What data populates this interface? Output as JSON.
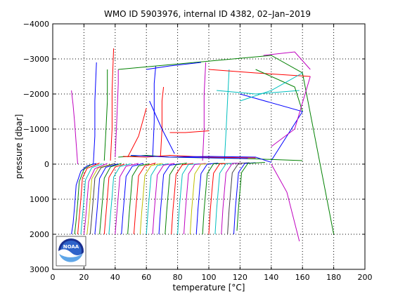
{
  "chart_data": {
    "type": "line",
    "title": "WMO ID 5903976, internal ID 4382, 02–Jan–2019",
    "xlabel": "temperature [°C]",
    "ylabel": "pressure [dbar]",
    "xlim": [
      0,
      200
    ],
    "ylim": [
      -4000,
      3000
    ],
    "y_reversed": true,
    "grid": true,
    "grid_style": "dotted",
    "x_ticks": [
      "0",
      "20",
      "40",
      "60",
      "80",
      "100",
      "120",
      "140",
      "160",
      "180",
      "200"
    ],
    "y_ticks": [
      "−4000",
      "−3000",
      "−2000",
      "−1000",
      "0",
      "1000",
      "2000",
      "3000"
    ],
    "logo": "NOAA",
    "profiles": [
      {
        "color": "#0000ff",
        "x": [
          12,
          13,
          14,
          15,
          18,
          22,
          28
        ],
        "y": [
          2000,
          1700,
          1200,
          600,
          200,
          50,
          -20
        ]
      },
      {
        "color": "#008000",
        "x": [
          14,
          15,
          16,
          17,
          20,
          25
        ],
        "y": [
          2000,
          1600,
          1100,
          500,
          150,
          0
        ]
      },
      {
        "color": "#ff0000",
        "x": [
          16,
          17,
          18,
          19,
          22,
          30
        ],
        "y": [
          2000,
          1500,
          1000,
          400,
          120,
          -30
        ]
      },
      {
        "color": "#00bfbf",
        "x": [
          18,
          19,
          20,
          21,
          25,
          32
        ],
        "y": [
          2000,
          1500,
          1000,
          450,
          100,
          -10
        ]
      },
      {
        "color": "#bf00bf",
        "x": [
          20,
          21,
          22,
          23,
          27,
          35
        ],
        "y": [
          2000,
          1600,
          1050,
          500,
          130,
          -20
        ]
      },
      {
        "color": "#bfbf00",
        "x": [
          22,
          23,
          24,
          25,
          29,
          38
        ],
        "y": [
          2000,
          1550,
          1000,
          420,
          110,
          0
        ]
      },
      {
        "color": "#404040",
        "x": [
          24,
          25,
          26,
          27,
          31,
          40
        ],
        "y": [
          2000,
          1500,
          980,
          400,
          100,
          -20
        ]
      },
      {
        "color": "#0000ff",
        "x": [
          27,
          28,
          29,
          30,
          34,
          42
        ],
        "y": [
          2000,
          1520,
          990,
          410,
          90,
          -10
        ]
      },
      {
        "color": "#008000",
        "x": [
          30,
          31,
          32,
          33,
          37,
          44
        ],
        "y": [
          2000,
          1500,
          960,
          400,
          80,
          -20
        ]
      },
      {
        "color": "#ff0000",
        "x": [
          33,
          34,
          35,
          36,
          40,
          46
        ],
        "y": [
          2000,
          1480,
          950,
          380,
          80,
          0
        ]
      },
      {
        "color": "#00bfbf",
        "x": [
          36,
          37,
          38,
          39,
          43,
          50
        ],
        "y": [
          2000,
          1450,
          930,
          370,
          70,
          -10
        ]
      },
      {
        "color": "#bf00bf",
        "x": [
          40,
          41,
          42,
          43,
          47,
          55
        ],
        "y": [
          2000,
          1440,
          920,
          360,
          60,
          -20
        ]
      },
      {
        "color": "#0000ff",
        "x": [
          44,
          45,
          46,
          47,
          51,
          58
        ],
        "y": [
          2000,
          1420,
          900,
          350,
          60,
          -20
        ]
      },
      {
        "color": "#008000",
        "x": [
          48,
          49,
          50,
          51,
          55,
          62
        ],
        "y": [
          2000,
          1400,
          880,
          340,
          50,
          -10
        ]
      },
      {
        "color": "#ff0000",
        "x": [
          52,
          53,
          54,
          55,
          59,
          66
        ],
        "y": [
          2000,
          1390,
          870,
          330,
          50,
          -30
        ]
      },
      {
        "color": "#bfbf00",
        "x": [
          56,
          57,
          58,
          59,
          63,
          70
        ],
        "y": [
          2000,
          1380,
          860,
          320,
          40,
          -20
        ]
      },
      {
        "color": "#00bfbf",
        "x": [
          60,
          61,
          62,
          63,
          67,
          74
        ],
        "y": [
          2000,
          1370,
          850,
          320,
          40,
          -10
        ]
      },
      {
        "color": "#bf00bf",
        "x": [
          64,
          65,
          66,
          67,
          71,
          78
        ],
        "y": [
          2000,
          1360,
          840,
          310,
          30,
          -20
        ]
      },
      {
        "color": "#0000ff",
        "x": [
          68,
          69,
          70,
          71,
          75,
          82
        ],
        "y": [
          2000,
          1350,
          830,
          300,
          30,
          -10
        ]
      },
      {
        "color": "#008000",
        "x": [
          72,
          73,
          74,
          75,
          79,
          86
        ],
        "y": [
          2000,
          1340,
          820,
          300,
          20,
          -30
        ]
      },
      {
        "color": "#ff0000",
        "x": [
          76,
          77,
          78,
          79,
          83,
          90
        ],
        "y": [
          2000,
          1330,
          810,
          290,
          20,
          -20
        ]
      },
      {
        "color": "#00bfbf",
        "x": [
          80,
          81,
          82,
          83,
          87,
          94
        ],
        "y": [
          2000,
          1320,
          800,
          290,
          10,
          -10
        ]
      },
      {
        "color": "#bf00bf",
        "x": [
          84,
          85,
          86,
          87,
          91,
          98
        ],
        "y": [
          2000,
          1320,
          800,
          280,
          10,
          -20
        ]
      },
      {
        "color": "#bfbf00",
        "x": [
          88,
          89,
          90,
          91,
          95,
          102
        ],
        "y": [
          2000,
          1310,
          790,
          280,
          0,
          -10
        ]
      },
      {
        "color": "#0000ff",
        "x": [
          92,
          93,
          94,
          95,
          99,
          106
        ],
        "y": [
          2000,
          1300,
          780,
          270,
          0,
          -30
        ]
      },
      {
        "color": "#008000",
        "x": [
          96,
          97,
          98,
          99,
          103,
          110
        ],
        "y": [
          2000,
          1300,
          780,
          270,
          -10,
          -20
        ]
      },
      {
        "color": "#ff0000",
        "x": [
          100,
          101,
          102,
          103,
          107,
          114
        ],
        "y": [
          2000,
          1290,
          770,
          260,
          -10,
          -20
        ]
      },
      {
        "color": "#00bfbf",
        "x": [
          104,
          105,
          106,
          107,
          111,
          118
        ],
        "y": [
          2000,
          1290,
          770,
          260,
          -10,
          -30
        ]
      },
      {
        "color": "#bf00bf",
        "x": [
          108,
          109,
          110,
          111,
          115,
          122
        ],
        "y": [
          2000,
          1280,
          760,
          250,
          -20,
          -30
        ]
      },
      {
        "color": "#404040",
        "x": [
          112,
          113,
          114,
          115,
          119,
          126
        ],
        "y": [
          2000,
          1280,
          760,
          250,
          -20,
          -40
        ]
      },
      {
        "color": "#0000ff",
        "x": [
          116,
          117,
          118,
          119,
          123,
          130
        ],
        "y": [
          2000,
          1270,
          750,
          240,
          -20,
          -40
        ]
      },
      {
        "color": "#008000",
        "x": [
          118,
          119,
          120,
          121,
          125,
          136
        ],
        "y": [
          1900,
          1250,
          740,
          240,
          -20,
          -50
        ]
      },
      {
        "color": "#bf00bf",
        "x": [
          16,
          15,
          14,
          13,
          12
        ],
        "y": [
          0,
          -600,
          -1200,
          -1700,
          -2100
        ]
      },
      {
        "color": "#0000ff",
        "x": [
          26,
          27,
          27,
          28
        ],
        "y": [
          0,
          -800,
          -1800,
          -2900
        ]
      },
      {
        "color": "#008000",
        "x": [
          33,
          34,
          35,
          35
        ],
        "y": [
          -100,
          -900,
          -1800,
          -2700
        ]
      },
      {
        "color": "#ff0000",
        "x": [
          37,
          38,
          38,
          39
        ],
        "y": [
          -100,
          -1000,
          -2100,
          -3300
        ]
      },
      {
        "color": "#bf00bf",
        "x": [
          40,
          41,
          42,
          42
        ],
        "y": [
          -200,
          -1200,
          -2300,
          -2700
        ]
      },
      {
        "color": "#0000ff",
        "x": [
          64,
          65,
          65,
          66
        ],
        "y": [
          -200,
          -1200,
          -2300,
          -2800
        ]
      },
      {
        "color": "#ff0000",
        "x": [
          69,
          70,
          70,
          71
        ],
        "y": [
          -200,
          -1000,
          -1800,
          -2200
        ]
      },
      {
        "color": "#bf00bf",
        "x": [
          96,
          97,
          97,
          98
        ],
        "y": [
          -100,
          -1000,
          -2000,
          -2900
        ]
      },
      {
        "color": "#00bfbf",
        "x": [
          110,
          111,
          112,
          113
        ],
        "y": [
          -100,
          -900,
          -1800,
          -2700
        ]
      },
      {
        "color": "#008000",
        "x": [
          42,
          140,
          160,
          180
        ],
        "y": [
          -2700,
          -3100,
          -2600,
          2000
        ]
      },
      {
        "color": "#bf00bf",
        "x": [
          135,
          155,
          165
        ],
        "y": [
          -3100,
          -3200,
          -2700
        ]
      },
      {
        "color": "#ff0000",
        "x": [
          100,
          130,
          165
        ],
        "y": [
          -2700,
          -2600,
          -2500
        ]
      },
      {
        "color": "#0000ff",
        "x": [
          120,
          160,
          140
        ],
        "y": [
          -2000,
          -1500,
          -100
        ]
      },
      {
        "color": "#00bfbf",
        "x": [
          105,
          130,
          158
        ],
        "y": [
          -2100,
          -2000,
          -2100
        ]
      },
      {
        "color": "#008000",
        "x": [
          42,
          60,
          75,
          130,
          160
        ],
        "y": [
          -200,
          -250,
          -200,
          -150,
          -100
        ]
      },
      {
        "color": "#ff0000",
        "x": [
          45,
          60,
          75,
          98,
          130
        ],
        "y": [
          -220,
          -200,
          -250,
          -200,
          -180
        ]
      },
      {
        "color": "#0000ff",
        "x": [
          50,
          75,
          100,
          130,
          140
        ],
        "y": [
          -250,
          -200,
          -220,
          -200,
          -50
        ]
      },
      {
        "color": "#bf00bf",
        "x": [
          140,
          150,
          158
        ],
        "y": [
          0,
          800,
          2200
        ]
      },
      {
        "color": "#0000ff",
        "x": [
          60,
          75,
          95
        ],
        "y": [
          -2700,
          -2800,
          -2900
        ]
      },
      {
        "color": "#ff0000",
        "x": [
          48,
          55,
          60
        ],
        "y": [
          -200,
          -800,
          -1600
        ]
      },
      {
        "color": "#0000ff",
        "x": [
          62,
          70,
          78
        ],
        "y": [
          -1800,
          -1000,
          -300
        ]
      },
      {
        "color": "#008000",
        "x": [
          130,
          155,
          160
        ],
        "y": [
          -2700,
          -2200,
          -1500
        ]
      },
      {
        "color": "#bf00bf",
        "x": [
          140,
          155,
          165
        ],
        "y": [
          -500,
          -1000,
          -2500
        ]
      },
      {
        "color": "#00bfbf",
        "x": [
          120,
          140,
          160
        ],
        "y": [
          -1800,
          -2100,
          -2600
        ]
      },
      {
        "color": "#ff0000",
        "x": [
          75,
          85,
          100
        ],
        "y": [
          -900,
          -900,
          -950
        ]
      },
      {
        "color": "#0000ff",
        "x": [
          80,
          100,
          125
        ],
        "y": [
          -200,
          -180,
          -160
        ]
      }
    ]
  }
}
